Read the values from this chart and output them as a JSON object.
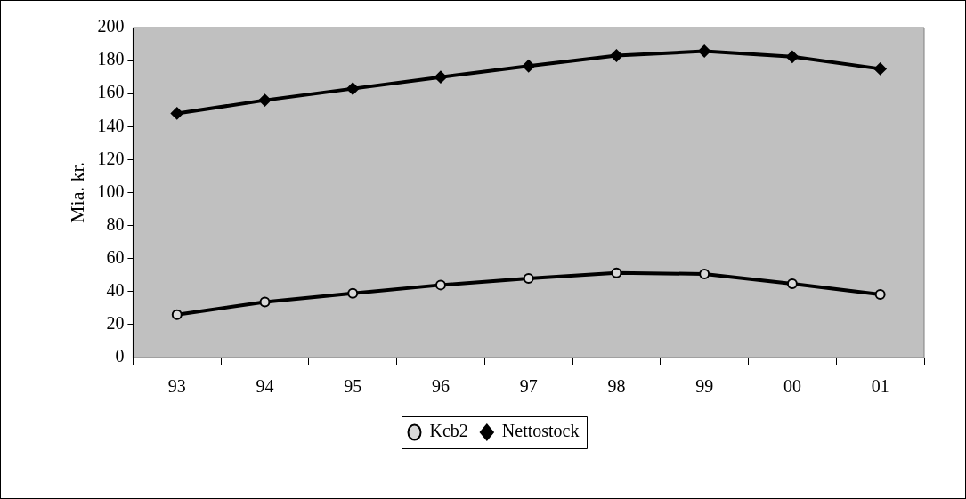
{
  "chart_data": {
    "type": "line",
    "ylabel": "Mia. kr.",
    "categories": [
      "93",
      "94",
      "95",
      "96",
      "97",
      "98",
      "99",
      "00",
      "01"
    ],
    "series": [
      {
        "name": "Kcb2",
        "color": "#000000",
        "marker": "circle",
        "values": [
          26,
          33.7,
          39,
          44,
          48,
          51.3,
          50.7,
          44.7,
          38.3
        ]
      },
      {
        "name": "Nettostock",
        "color": "#000000",
        "marker": "diamond",
        "values": [
          148,
          156,
          163,
          170,
          176.7,
          183,
          185.7,
          182.3,
          175
        ]
      }
    ],
    "ylim": [
      0,
      200
    ],
    "yticks": [
      0,
      20,
      40,
      60,
      80,
      100,
      120,
      140,
      160,
      180,
      200
    ],
    "grid": false,
    "legend": "bottom"
  }
}
